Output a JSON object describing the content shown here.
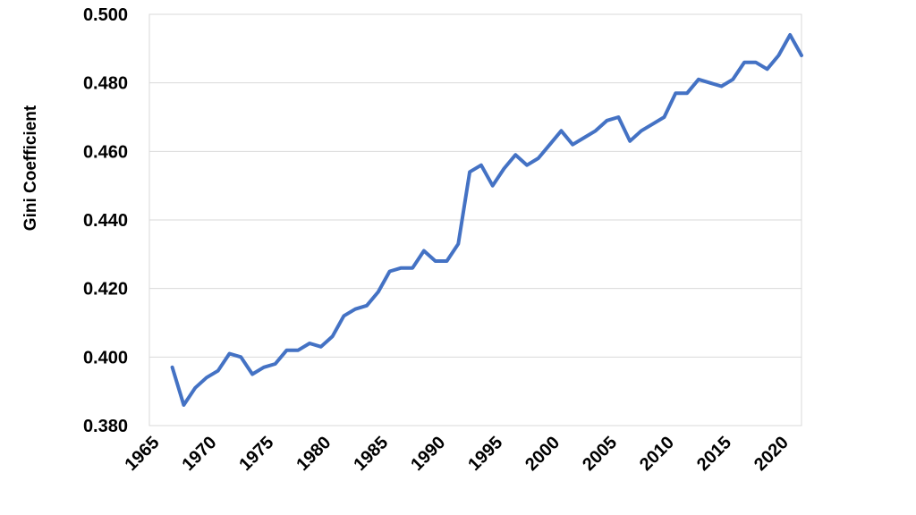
{
  "chart_data": {
    "type": "line",
    "title": "",
    "xlabel": "",
    "ylabel": "Gini Coefficient",
    "xlim": [
      1965,
      2022
    ],
    "ylim": [
      0.38,
      0.5
    ],
    "x_ticks": [
      "1965",
      "1970",
      "1975",
      "1980",
      "1985",
      "1990",
      "1995",
      "2000",
      "2005",
      "2010",
      "2015",
      "2020"
    ],
    "y_ticks": [
      "0.380",
      "0.400",
      "0.420",
      "0.440",
      "0.460",
      "0.480",
      "0.500"
    ],
    "grid": "horizontal",
    "legend": "none",
    "line_color": "#4472C4",
    "series": [
      {
        "x": [
          1967,
          1968,
          1969,
          1970,
          1971,
          1972,
          1973,
          1974,
          1975,
          1976,
          1977,
          1978,
          1979,
          1980,
          1981,
          1982,
          1983,
          1984,
          1985,
          1986,
          1987,
          1988,
          1989,
          1990,
          1991,
          1992,
          1993,
          1994,
          1995,
          1996,
          1997,
          1998,
          1999,
          2000,
          2001,
          2002,
          2003,
          2004,
          2005,
          2006,
          2007,
          2008,
          2009,
          2010,
          2011,
          2012,
          2013,
          2014,
          2015,
          2016,
          2017,
          2018,
          2019,
          2020,
          2021,
          2022
        ],
        "values": [
          0.397,
          0.386,
          0.391,
          0.394,
          0.396,
          0.401,
          0.4,
          0.395,
          0.397,
          0.398,
          0.402,
          0.402,
          0.404,
          0.403,
          0.406,
          0.412,
          0.414,
          0.415,
          0.419,
          0.425,
          0.426,
          0.426,
          0.431,
          0.428,
          0.428,
          0.433,
          0.454,
          0.456,
          0.45,
          0.455,
          0.459,
          0.456,
          0.458,
          0.462,
          0.466,
          0.462,
          0.464,
          0.466,
          0.469,
          0.47,
          0.463,
          0.466,
          0.468,
          0.47,
          0.477,
          0.477,
          0.481,
          0.48,
          0.479,
          0.481,
          0.486,
          0.486,
          0.484,
          0.488,
          0.494,
          0.488
        ]
      }
    ]
  }
}
